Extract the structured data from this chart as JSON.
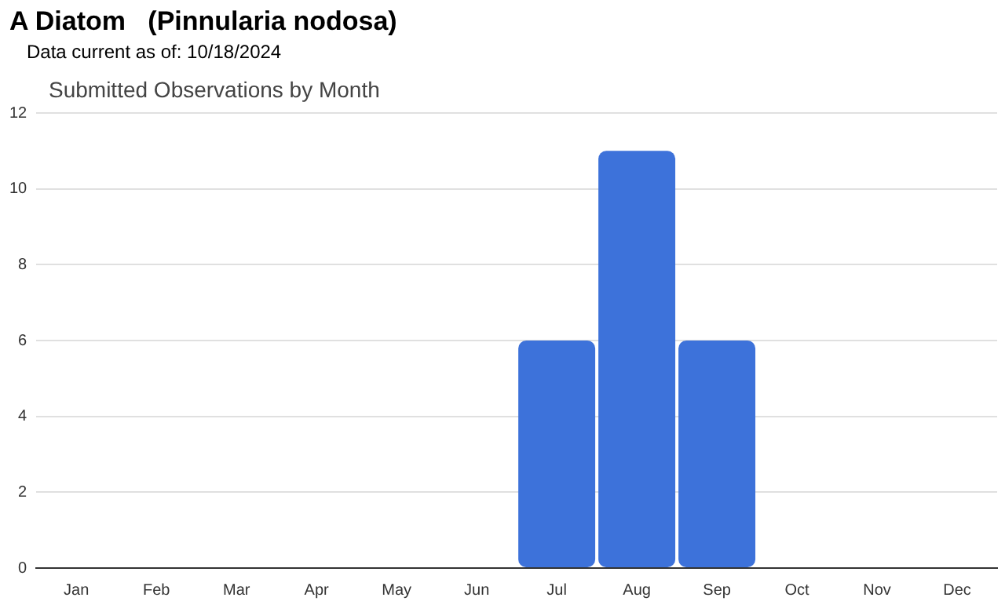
{
  "chart_data": {
    "type": "bar",
    "title": "A Diatom   (Pinnularia nodosa)",
    "subtitle": "Data current as of: 10/18/2024",
    "annotations": [
      "Submitted Observations by Month"
    ],
    "categories": [
      "Jan",
      "Feb",
      "Mar",
      "Apr",
      "May",
      "Jun",
      "Jul",
      "Aug",
      "Sep",
      "Oct",
      "Nov",
      "Dec"
    ],
    "values": [
      0,
      0,
      0,
      0,
      0,
      0,
      6,
      11,
      6,
      0,
      0,
      0
    ],
    "color": "#3d72da",
    "ylim": [
      0,
      12
    ],
    "yticks": [
      0,
      2,
      4,
      6,
      8,
      10,
      12
    ],
    "grid": "y",
    "legend": false
  }
}
